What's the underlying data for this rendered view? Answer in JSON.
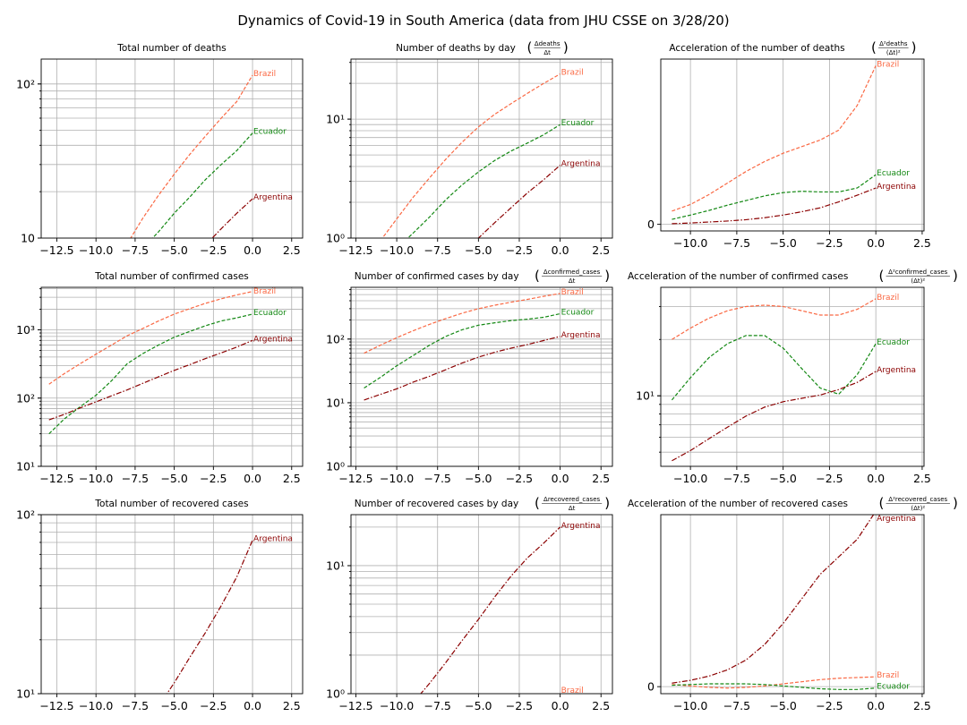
{
  "figure": {
    "title": "Dynamics of Covid-19 in South America (data from JHU CSSE on 3/28/20)",
    "colors": {
      "Brazil": "#fa6843",
      "Ecuador": "#138813",
      "Argentina": "#8b0000"
    },
    "dashes": {
      "Brazil": "4 2",
      "Ecuador": "4 2",
      "Argentina": "6 2 1.5 2"
    }
  },
  "chart_data": [
    {
      "id": "p11",
      "type": "line",
      "title": "Total number of deaths",
      "xlim": [
        -13.5,
        3.2
      ],
      "xticks": [
        -12.5,
        -10,
        -7.5,
        -5,
        -2.5,
        0,
        2.5
      ],
      "xtick_labels": [
        "−12.5",
        "−10.0",
        "−7.5",
        "−5.0",
        "−2.5",
        "0.0",
        "2.5"
      ],
      "yscale": "log",
      "ylim": [
        10,
        145
      ],
      "yticks": [
        10,
        100
      ],
      "ytick_labels": [
        "10",
        "10²"
      ],
      "series": [
        {
          "name": "Brazil",
          "x": [
            -8,
            -7,
            -6,
            -5,
            -4,
            -3,
            -2,
            -1,
            0
          ],
          "y": [
            9.2,
            13.5,
            19,
            26,
            35,
            46,
            60,
            77,
            114
          ]
        },
        {
          "name": "Ecuador",
          "x": [
            -7,
            -6,
            -5,
            -4,
            -3,
            -2,
            -1,
            0
          ],
          "y": [
            8.6,
            11,
            14.5,
            18.5,
            24,
            30,
            37,
            48
          ]
        },
        {
          "name": "Argentina",
          "x": [
            -3,
            -2,
            -1,
            0
          ],
          "y": [
            9,
            11.5,
            14.5,
            18
          ]
        }
      ]
    },
    {
      "id": "p12",
      "type": "line",
      "title": "Number of deaths by day",
      "title_formula": [
        "Δdeaths",
        "Δt"
      ],
      "xlim": [
        -12.8,
        3.2
      ],
      "xticks": [
        -12.5,
        -10,
        -7.5,
        -5,
        -2.5,
        0,
        2.5
      ],
      "xtick_labels": [
        "−12.5",
        "−10.0",
        "−7.5",
        "−5.0",
        "−2.5",
        "0.0",
        "2.5"
      ],
      "yscale": "log",
      "ylim": [
        1,
        32
      ],
      "yticks": [
        1,
        10
      ],
      "ytick_labels": [
        "10⁰",
        "10¹"
      ],
      "series": [
        {
          "name": "Brazil",
          "x": [
            -11,
            -10,
            -9,
            -8,
            -7,
            -6,
            -5,
            -4,
            -3,
            -2,
            -1,
            0
          ],
          "y": [
            0.95,
            1.45,
            2.2,
            3.2,
            4.6,
            6.4,
            8.6,
            11,
            13.5,
            16.5,
            20,
            24
          ]
        },
        {
          "name": "Ecuador",
          "x": [
            -9.5,
            -9,
            -8,
            -7,
            -6,
            -5,
            -4,
            -3,
            -2,
            -1,
            0
          ],
          "y": [
            0.95,
            1.1,
            1.5,
            2.1,
            2.8,
            3.6,
            4.5,
            5.4,
            6.3,
            7.4,
            9
          ]
        },
        {
          "name": "Argentina",
          "x": [
            -5.5,
            -5,
            -4,
            -3,
            -2,
            -1,
            0
          ],
          "y": [
            0.85,
            1.0,
            1.35,
            1.8,
            2.4,
            3.1,
            4.1
          ]
        }
      ]
    },
    {
      "id": "p13",
      "type": "line",
      "title": "Acceleration of the number of deaths",
      "title_formula": [
        "Δ²deaths",
        "(Δt)²"
      ],
      "xlim": [
        -11.6,
        2.6
      ],
      "xticks": [
        -10,
        -7.5,
        -5,
        -2.5,
        0,
        2.5
      ],
      "xtick_labels": [
        "−10.0",
        "−7.5",
        "−5.0",
        "−2.5",
        "0.0",
        "2.5"
      ],
      "yscale": "linear",
      "ylim": [
        -0.2,
        5.0
      ],
      "yticks": [
        0
      ],
      "ytick_labels": [
        "0"
      ],
      "series": [
        {
          "name": "Brazil",
          "x": [
            -11,
            -10,
            -9,
            -8,
            -7,
            -6,
            -5,
            -4,
            -3,
            -2,
            -1,
            0
          ],
          "y": [
            0.4,
            0.6,
            0.9,
            1.25,
            1.6,
            1.9,
            2.15,
            2.35,
            2.55,
            2.85,
            3.6,
            4.8
          ]
        },
        {
          "name": "Ecuador",
          "x": [
            -11,
            -10,
            -9,
            -8,
            -7,
            -6,
            -5,
            -4,
            -3,
            -2,
            -1,
            0
          ],
          "y": [
            0.15,
            0.28,
            0.42,
            0.58,
            0.72,
            0.86,
            0.96,
            1.0,
            0.98,
            0.98,
            1.1,
            1.5
          ]
        },
        {
          "name": "Argentina",
          "x": [
            -11,
            -10,
            -9,
            -8,
            -7,
            -6,
            -5,
            -4,
            -3,
            -2,
            -1,
            0
          ],
          "y": [
            0.02,
            0.04,
            0.07,
            0.1,
            0.14,
            0.2,
            0.28,
            0.38,
            0.5,
            0.68,
            0.88,
            1.1
          ]
        }
      ]
    },
    {
      "id": "p21",
      "type": "line",
      "title": "Total number of confirmed cases",
      "xlim": [
        -13.5,
        3.2
      ],
      "xticks": [
        -12.5,
        -10,
        -7.5,
        -5,
        -2.5,
        0,
        2.5
      ],
      "xtick_labels": [
        "−12.5",
        "−10.0",
        "−7.5",
        "−5.0",
        "−2.5",
        "0.0",
        "2.5"
      ],
      "yscale": "log",
      "ylim": [
        10,
        4200
      ],
      "yticks": [
        10,
        100,
        1000
      ],
      "ytick_labels": [
        "10¹",
        "10²",
        "10³"
      ],
      "series": [
        {
          "name": "Brazil",
          "x": [
            -13,
            -12,
            -11,
            -10,
            -9,
            -8,
            -7,
            -6,
            -5,
            -4,
            -3,
            -2,
            -1,
            0
          ],
          "y": [
            160,
            230,
            320,
            440,
            600,
            820,
            1050,
            1350,
            1700,
            2050,
            2450,
            2850,
            3250,
            3650
          ]
        },
        {
          "name": "Ecuador",
          "x": [
            -13,
            -12,
            -11,
            -10,
            -9,
            -8,
            -7,
            -6,
            -5,
            -4,
            -3,
            -2,
            -1,
            0
          ],
          "y": [
            30,
            50,
            75,
            110,
            180,
            320,
            450,
            600,
            780,
            950,
            1150,
            1350,
            1500,
            1700
          ]
        },
        {
          "name": "Argentina",
          "x": [
            -13,
            -12,
            -11,
            -10,
            -9,
            -8,
            -7,
            -6,
            -5,
            -4,
            -3,
            -2,
            -1,
            0
          ],
          "y": [
            48,
            58,
            72,
            88,
            108,
            132,
            165,
            205,
            255,
            310,
            380,
            460,
            560,
            700
          ]
        }
      ]
    },
    {
      "id": "p22",
      "type": "line",
      "title": "Number of confirmed cases by day",
      "title_formula": [
        "Δconfirmed_cases",
        "Δt"
      ],
      "xlim": [
        -12.8,
        3.2
      ],
      "xticks": [
        -12.5,
        -10,
        -7.5,
        -5,
        -2.5,
        0,
        2.5
      ],
      "xtick_labels": [
        "−12.5",
        "−10.0",
        "−7.5",
        "−5.0",
        "−2.5",
        "0.0",
        "2.5"
      ],
      "yscale": "log",
      "ylim": [
        1,
        650
      ],
      "yticks": [
        1,
        10,
        100
      ],
      "ytick_labels": [
        "10⁰",
        "10¹",
        "10²"
      ],
      "series": [
        {
          "name": "Brazil",
          "x": [
            -12,
            -11,
            -10,
            -9,
            -8,
            -7,
            -6,
            -5,
            -4,
            -3,
            -2,
            -1,
            0
          ],
          "y": [
            60,
            80,
            105,
            135,
            170,
            210,
            255,
            300,
            340,
            380,
            420,
            470,
            520
          ]
        },
        {
          "name": "Ecuador",
          "x": [
            -12,
            -11,
            -10,
            -9,
            -8,
            -7,
            -6,
            -5,
            -4,
            -3,
            -2,
            -1,
            0
          ],
          "y": [
            17,
            25,
            38,
            55,
            80,
            110,
            140,
            165,
            180,
            195,
            205,
            220,
            250
          ]
        },
        {
          "name": "Argentina",
          "x": [
            -12,
            -11,
            -10,
            -9,
            -8,
            -7,
            -6,
            -5,
            -4,
            -3,
            -2,
            -1,
            0
          ],
          "y": [
            11,
            13.5,
            16.5,
            21,
            26,
            33,
            42,
            52,
            62,
            72,
            82,
            95,
            110
          ]
        }
      ]
    },
    {
      "id": "p23",
      "type": "line",
      "title": "Acceleration of the number of confirmed cases",
      "title_formula": [
        "Δ²confirmed_cases",
        "(Δt)²"
      ],
      "xlim": [
        -11.6,
        2.6
      ],
      "xticks": [
        -10,
        -7.5,
        -5,
        -2.5,
        0,
        2.5
      ],
      "xtick_labels": [
        "−10.0",
        "−7.5",
        "−5.0",
        "−2.5",
        "0.0",
        "2.5"
      ],
      "yscale": "log",
      "ylim": [
        4.2,
        38
      ],
      "yticks": [
        10
      ],
      "ytick_labels": [
        "10¹"
      ],
      "series": [
        {
          "name": "Brazil",
          "x": [
            -11,
            -10,
            -9,
            -8,
            -7,
            -6,
            -5,
            -4,
            -3,
            -2,
            -1,
            0
          ],
          "y": [
            20,
            23,
            26,
            28.5,
            30,
            30.5,
            30,
            28.5,
            27,
            27,
            29,
            33
          ]
        },
        {
          "name": "Ecuador",
          "x": [
            -11,
            -10,
            -9,
            -8,
            -7,
            -6,
            -5,
            -4,
            -3,
            -2,
            -1,
            0
          ],
          "y": [
            9.5,
            12.5,
            16,
            19,
            21,
            21,
            18,
            14,
            11,
            10.2,
            13,
            19
          ]
        },
        {
          "name": "Argentina",
          "x": [
            -11,
            -10,
            -9,
            -8,
            -7,
            -6,
            -5,
            -4,
            -3,
            -2,
            -1,
            0
          ],
          "y": [
            4.5,
            5.1,
            5.9,
            6.8,
            7.8,
            8.7,
            9.3,
            9.7,
            10.1,
            10.8,
            11.8,
            13.5
          ]
        }
      ]
    },
    {
      "id": "p31",
      "type": "line",
      "title": "Total number of recovered cases",
      "xlim": [
        -13.5,
        3.2
      ],
      "xticks": [
        -12.5,
        -10,
        -7.5,
        -5,
        -2.5,
        0,
        2.5
      ],
      "xtick_labels": [
        "−12.5",
        "−10.0",
        "−7.5",
        "−5.0",
        "−2.5",
        "0.0",
        "2.5"
      ],
      "yscale": "log",
      "ylim": [
        10,
        100
      ],
      "yticks": [
        10,
        100
      ],
      "ytick_labels": [
        "10¹",
        "10²"
      ],
      "series": [
        {
          "name": "Argentina",
          "x": [
            -6,
            -5,
            -4,
            -3,
            -2,
            -1,
            0
          ],
          "y": [
            8.5,
            11.5,
            16,
            22,
            31,
            45,
            72
          ]
        }
      ]
    },
    {
      "id": "p32",
      "type": "line",
      "title": "Number of recovered cases by day",
      "title_formula": [
        "Δrecovered_cases",
        "Δt"
      ],
      "xlim": [
        -12.8,
        3.2
      ],
      "xticks": [
        -12.5,
        -10,
        -7.5,
        -5,
        -2.5,
        0,
        2.5
      ],
      "xtick_labels": [
        "−12.5",
        "−10.0",
        "−7.5",
        "−5.0",
        "−2.5",
        "0.0",
        "2.5"
      ],
      "yscale": "log",
      "ylim": [
        1,
        25
      ],
      "yticks": [
        1,
        10
      ],
      "ytick_labels": [
        "10⁰",
        "10¹"
      ],
      "series": [
        {
          "name": "Brazil",
          "x": [],
          "y": [],
          "label_y": 1.0
        },
        {
          "name": "Argentina",
          "x": [
            -9,
            -8,
            -7,
            -6,
            -5,
            -4,
            -3,
            -2,
            -1,
            0
          ],
          "y": [
            0.85,
            1.2,
            1.75,
            2.6,
            3.8,
            5.7,
            8.3,
            11.5,
            15,
            20
          ]
        }
      ]
    },
    {
      "id": "p33",
      "type": "line",
      "title": "Acceleration of the number of recovered cases",
      "title_formula": [
        "Δ²recovered_cases",
        "(Δt)²"
      ],
      "xlim": [
        -11.6,
        2.6
      ],
      "xticks": [
        -10,
        -7.5,
        -5,
        -2.5,
        0,
        2.5
      ],
      "xtick_labels": [
        "−10.0",
        "−7.5",
        "−5.0",
        "−2.5",
        "0.0",
        "2.5"
      ],
      "yscale": "linear",
      "ylim": [
        -0.1,
        2.45
      ],
      "yticks": [
        0
      ],
      "ytick_labels": [
        "0"
      ],
      "series": [
        {
          "name": "Brazil",
          "x": [
            -11,
            -10,
            -9,
            -8,
            -7,
            -6,
            -5,
            -4,
            -3,
            -2,
            -1,
            0
          ],
          "y": [
            0.03,
            0.01,
            -0.01,
            -0.02,
            -0.01,
            0.01,
            0.04,
            0.07,
            0.1,
            0.12,
            0.13,
            0.14
          ]
        },
        {
          "name": "Ecuador",
          "x": [
            -11,
            -10,
            -9,
            -8,
            -7,
            -6,
            -5,
            -4,
            -3,
            -2,
            -1,
            0
          ],
          "y": [
            0.02,
            0.03,
            0.04,
            0.04,
            0.04,
            0.03,
            0.01,
            -0.01,
            -0.03,
            -0.04,
            -0.04,
            -0.02
          ]
        },
        {
          "name": "Argentina",
          "x": [
            -11,
            -10,
            -9,
            -8,
            -7,
            -6,
            -5,
            -4,
            -3,
            -2,
            -1,
            0
          ],
          "y": [
            0.05,
            0.09,
            0.15,
            0.24,
            0.38,
            0.6,
            0.9,
            1.25,
            1.6,
            1.85,
            2.1,
            2.5
          ]
        }
      ]
    }
  ]
}
